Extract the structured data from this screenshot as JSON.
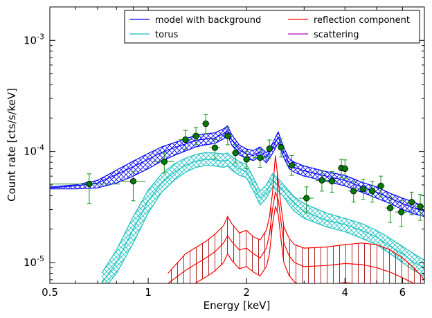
{
  "chart_data": {
    "type": "line",
    "xlabel": "Energy [keV]",
    "ylabel": "Count rate [cts/s/keV]",
    "xscale": "log",
    "yscale": "log",
    "xlim": [
      0.5,
      7.0
    ],
    "ylim": [
      6.5e-06,
      0.002
    ],
    "x_ticks": [
      {
        "value": 0.5,
        "label": "0.5"
      },
      {
        "value": 1,
        "label": "1"
      },
      {
        "value": 2,
        "label": "2"
      },
      {
        "value": 4,
        "label": "4"
      },
      {
        "value": 6,
        "label": "6"
      }
    ],
    "y_ticks": [
      {
        "value": 1e-05,
        "base": "10",
        "exp": "-5"
      },
      {
        "value": 0.0001,
        "base": "10",
        "exp": "-4"
      },
      {
        "value": 0.001,
        "base": "10",
        "exp": "-3"
      }
    ],
    "legend": {
      "position": "top-right",
      "columns": 2,
      "entries": [
        {
          "label": "model with background",
          "color": "#0000ff"
        },
        {
          "label": "torus",
          "color": "#17bfbf"
        },
        {
          "label": "reflection component",
          "color": "#ff0000"
        },
        {
          "label": "scattering",
          "color": "#bf00bf"
        }
      ]
    },
    "series": [
      {
        "name": "model with background",
        "color": "#0000ff",
        "style": "hatched band",
        "x": [
          0.5,
          0.6,
          0.7,
          0.8,
          0.9,
          1.0,
          1.1,
          1.2,
          1.3,
          1.4,
          1.5,
          1.6,
          1.7,
          1.75,
          1.8,
          1.9,
          2.0,
          2.1,
          2.2,
          2.3,
          2.4,
          2.5,
          2.6,
          2.7,
          2.8,
          3.0,
          3.5,
          4.0,
          4.5,
          5.0,
          5.5,
          6.0,
          6.5,
          7.0
        ],
        "mid": [
          4.7e-05,
          4.9e-05,
          5.2e-05,
          6.2e-05,
          7.3e-05,
          8.5e-05,
          9.8e-05,
          0.000108,
          0.000117,
          0.000126,
          0.00013,
          0.000132,
          0.000145,
          0.000155,
          0.000128,
          0.000103,
          9.5e-05,
          9.2e-05,
          0.0001,
          8.8e-05,
          0.000107,
          0.000135,
          9.8e-05,
          7.8e-05,
          7.2e-05,
          6.7e-05,
          6e-05,
          5.5e-05,
          4.8e-05,
          4.3e-05,
          3.8e-05,
          3.4e-05,
          3.1e-05,
          2.9e-05
        ],
        "lower": [
          4.6e-05,
          4.6e-05,
          4.7e-05,
          5.2e-05,
          6e-05,
          7e-05,
          8.2e-05,
          9.2e-05,
          0.000101,
          0.00011,
          0.000115,
          0.000118,
          0.00013,
          0.00014,
          0.000115,
          9.3e-05,
          8.6e-05,
          8.3e-05,
          9e-05,
          7.9e-05,
          9.6e-05,
          0.00012,
          8.8e-05,
          7e-05,
          6.5e-05,
          6e-05,
          5.4e-05,
          4.9e-05,
          4.3e-05,
          3.8e-05,
          3.4e-05,
          3e-05,
          2.75e-05,
          2.6e-05
        ],
        "upper": [
          4.8e-05,
          5e-05,
          5.5e-05,
          6.8e-05,
          8.2e-05,
          9.6e-05,
          0.00011,
          0.00012,
          0.00013,
          0.00014,
          0.000145,
          0.000147,
          0.00016,
          0.00017,
          0.000142,
          0.000114,
          0.000105,
          0.000102,
          0.00011,
          9.7e-05,
          0.000118,
          0.00015,
          0.000108,
          8.6e-05,
          8e-05,
          7.4e-05,
          6.6e-05,
          6.1e-05,
          5.3e-05,
          4.8e-05,
          4.2e-05,
          3.8e-05,
          3.5e-05,
          3.2e-05
        ]
      },
      {
        "name": "torus",
        "color": "#17bfbf",
        "style": "hatched band",
        "x": [
          0.72,
          0.8,
          0.9,
          1.0,
          1.1,
          1.2,
          1.3,
          1.4,
          1.5,
          1.6,
          1.7,
          1.75,
          1.8,
          1.9,
          2.0,
          2.1,
          2.2,
          2.3,
          2.4,
          2.5,
          2.6,
          2.7,
          2.8,
          3.0,
          3.5,
          4.0,
          4.5,
          5.0,
          5.5,
          6.0,
          6.5,
          7.0
        ],
        "mid": [
          6.5e-06,
          1e-05,
          2e-05,
          3.6e-05,
          5.2e-05,
          6.5e-05,
          7.5e-05,
          8.2e-05,
          8.5e-05,
          8.4e-05,
          8.2e-05,
          8.4e-05,
          7.8e-05,
          7e-05,
          6.6e-05,
          5e-05,
          3.8e-05,
          4.3e-05,
          5.5e-05,
          5e-05,
          4.4e-05,
          3.8e-05,
          3.4e-05,
          2.9e-05,
          2.4e-05,
          2.2e-05,
          1.95e-05,
          1.7e-05,
          1.4e-05,
          1.2e-05,
          1e-05,
          9e-06
        ],
        "lower": [
          5.5e-06,
          8e-06,
          1.5e-05,
          2.8e-05,
          4.3e-05,
          5.5e-05,
          6.5e-05,
          7.2e-05,
          7.5e-05,
          7.4e-05,
          7.2e-05,
          7.4e-05,
          6.8e-05,
          6.1e-05,
          5.8e-05,
          4.4e-05,
          3.3e-05,
          3.8e-05,
          4.8e-05,
          4.4e-05,
          3.9e-05,
          3.3e-05,
          2.9e-05,
          2.5e-05,
          2.1e-05,
          1.9e-05,
          1.65e-05,
          1.45e-05,
          1.2e-05,
          1e-05,
          8.5e-06,
          7.5e-06
        ],
        "upper": [
          8e-06,
          1.3e-05,
          2.6e-05,
          4.5e-05,
          6.3e-05,
          7.7e-05,
          8.7e-05,
          9.4e-05,
          9.8e-05,
          9.7e-05,
          9.5e-05,
          9.7e-05,
          9e-05,
          8.1e-05,
          7.6e-05,
          5.8e-05,
          4.4e-05,
          5e-05,
          6.3e-05,
          5.7e-05,
          5e-05,
          4.4e-05,
          3.9e-05,
          3.4e-05,
          2.8e-05,
          2.5e-05,
          2.25e-05,
          1.95e-05,
          1.65e-05,
          1.4e-05,
          1.2e-05,
          1.05e-05
        ]
      },
      {
        "name": "reflection component",
        "color": "#ff0000",
        "style": "hatched band",
        "x": [
          1.15,
          1.3,
          1.5,
          1.6,
          1.7,
          1.75,
          1.8,
          1.9,
          2.0,
          2.1,
          2.2,
          2.3,
          2.35,
          2.4,
          2.45,
          2.5,
          2.55,
          2.6,
          2.7,
          2.8,
          3.0,
          3.5,
          4.0,
          4.5,
          5.0,
          5.5,
          6.0,
          6.5,
          7.0
        ],
        "mid": [
          6.5e-06,
          8.5e-06,
          1.1e-05,
          1.25e-05,
          1.5e-05,
          1.75e-05,
          1.55e-05,
          1.3e-05,
          1.35e-05,
          1.2e-05,
          1.1e-05,
          1.35e-05,
          1.8e-05,
          3e-05,
          4.3e-05,
          3.7e-05,
          2.3e-05,
          1.5e-05,
          1.15e-05,
          1e-05,
          9.2e-06,
          9.4e-06,
          9.8e-06,
          9.6e-06,
          9e-06,
          8.2e-06,
          7.3e-06,
          6.5e-06,
          5.8e-06
        ],
        "lower": [
          5e-06,
          5.8e-06,
          7.4e-06,
          8.4e-06,
          1e-05,
          1.2e-05,
          1.05e-05,
          8.8e-06,
          9.2e-06,
          8.2e-06,
          7.6e-06,
          9.2e-06,
          1.2e-05,
          2.2e-05,
          3.2e-05,
          2.7e-05,
          1.6e-05,
          1e-05,
          7.6e-06,
          6.7e-06,
          6.1e-06,
          6.3e-06,
          6.6e-06,
          6.4e-06,
          6e-06,
          5.5e-06,
          5e-06,
          4.5e-06,
          4e-06
        ],
        "upper": [
          8e-06,
          1.2e-05,
          1.55e-05,
          1.8e-05,
          2.15e-05,
          2.6e-05,
          2.25e-05,
          1.85e-05,
          1.95e-05,
          1.7e-05,
          1.6e-05,
          1.95e-05,
          2.6e-05,
          4.2e-05,
          9.2e-05,
          5.4e-05,
          3.2e-05,
          2.1e-05,
          1.65e-05,
          1.45e-05,
          1.35e-05,
          1.38e-05,
          1.45e-05,
          1.5e-05,
          1.45e-05,
          1.3e-05,
          1.1e-05,
          9e-06,
          7e-06
        ]
      },
      {
        "name": "data",
        "color": "#007a00",
        "style": "points with error bars",
        "points": [
          {
            "x": 0.66,
            "y": 5.1e-05,
            "xerr": [
              0.5,
              0.82
            ],
            "yerr": [
              3.4e-05,
              6.3e-05
            ]
          },
          {
            "x": 0.9,
            "y": 5.4e-05,
            "xerr": [
              0.82,
              0.98
            ],
            "yerr": [
              3.6e-05,
              6.6e-05
            ]
          },
          {
            "x": 1.12,
            "y": 8.1e-05,
            "xerr": [
              1.04,
              1.2
            ],
            "yerr": [
              6.4e-05,
              9.8e-05
            ]
          },
          {
            "x": 1.3,
            "y": 0.000128,
            "xerr": [
              1.24,
              1.36
            ],
            "yerr": [
              0.000105,
              0.000155
            ]
          },
          {
            "x": 1.4,
            "y": 0.000138,
            "xerr": [
              1.36,
              1.46
            ],
            "yerr": [
              0.000115,
              0.000165
            ]
          },
          {
            "x": 1.5,
            "y": 0.000178,
            "xerr": [
              1.46,
              1.54
            ],
            "yerr": [
              0.000145,
              0.000215
            ]
          },
          {
            "x": 1.6,
            "y": 0.000108,
            "xerr": [
              1.54,
              1.66
            ],
            "yerr": [
              8.6e-05,
              0.000128
            ]
          },
          {
            "x": 1.75,
            "y": 0.000138,
            "xerr": [
              1.7,
              1.8
            ],
            "yerr": [
              0.000115,
              0.000165
            ]
          },
          {
            "x": 1.85,
            "y": 9.7e-05,
            "xerr": [
              1.8,
              1.9
            ],
            "yerr": [
              7.9e-05,
              0.000115
            ]
          },
          {
            "x": 2.0,
            "y": 8.5e-05,
            "xerr": [
              1.95,
              2.05
            ],
            "yerr": [
              7e-05,
              0.0001
            ]
          },
          {
            "x": 2.2,
            "y": 8.8e-05,
            "xerr": [
              2.1,
              2.3
            ],
            "yerr": [
              7.2e-05,
              0.000105
            ]
          },
          {
            "x": 2.35,
            "y": 0.000106,
            "xerr": [
              2.3,
              2.4
            ],
            "yerr": [
              8.6e-05,
              0.000127
            ]
          },
          {
            "x": 2.55,
            "y": 0.000109,
            "xerr": [
              2.5,
              2.6
            ],
            "yerr": [
              8.9e-05,
              0.00013
            ]
          },
          {
            "x": 2.75,
            "y": 7.5e-05,
            "xerr": [
              2.65,
              2.85
            ],
            "yerr": [
              6.1e-05,
              9.2e-05
            ]
          },
          {
            "x": 3.05,
            "y": 3.8e-05,
            "xerr": [
              2.9,
              3.2
            ],
            "yerr": [
              2.8e-05,
              4.8e-05
            ]
          },
          {
            "x": 3.4,
            "y": 5.5e-05,
            "xerr": [
              3.25,
              3.55
            ],
            "yerr": [
              4.4e-05,
              6.7e-05
            ]
          },
          {
            "x": 3.65,
            "y": 5.4e-05,
            "xerr": [
              3.5,
              3.8
            ],
            "yerr": [
              4.3e-05,
              6.6e-05
            ]
          },
          {
            "x": 3.9,
            "y": 7.1e-05,
            "xerr": [
              3.8,
              4.0
            ],
            "yerr": [
              5.8e-05,
              8.5e-05
            ]
          },
          {
            "x": 4.0,
            "y": 7e-05,
            "xerr": [
              3.95,
              4.1
            ],
            "yerr": [
              5.7e-05,
              8.4e-05
            ]
          },
          {
            "x": 4.25,
            "y": 4.4e-05,
            "xerr": [
              4.1,
              4.4
            ],
            "yerr": [
              3.5e-05,
              5.4e-05
            ]
          },
          {
            "x": 4.55,
            "y": 4.6e-05,
            "xerr": [
              4.4,
              4.7
            ],
            "yerr": [
              3.7e-05,
              5.6e-05
            ]
          },
          {
            "x": 4.85,
            "y": 4.4e-05,
            "xerr": [
              4.7,
              5.0
            ],
            "yerr": [
              3.5e-05,
              5.4e-05
            ]
          },
          {
            "x": 5.15,
            "y": 4.9e-05,
            "xerr": [
              5.0,
              5.3
            ],
            "yerr": [
              3.9e-05,
              6e-05
            ]
          },
          {
            "x": 5.5,
            "y": 3.1e-05,
            "xerr": [
              5.3,
              5.7
            ],
            "yerr": [
              2.3e-05,
              3.9e-05
            ]
          },
          {
            "x": 5.95,
            "y": 2.85e-05,
            "xerr": [
              5.7,
              6.2
            ],
            "yerr": [
              2.1e-05,
              3.6e-05
            ]
          },
          {
            "x": 6.4,
            "y": 3.5e-05,
            "xerr": [
              6.2,
              6.6
            ],
            "yerr": [
              2.7e-05,
              4.3e-05
            ]
          },
          {
            "x": 6.8,
            "y": 3.2e-05,
            "xerr": [
              6.6,
              7.0
            ],
            "yerr": [
              2.4e-05,
              4.1e-05
            ]
          }
        ]
      }
    ]
  }
}
